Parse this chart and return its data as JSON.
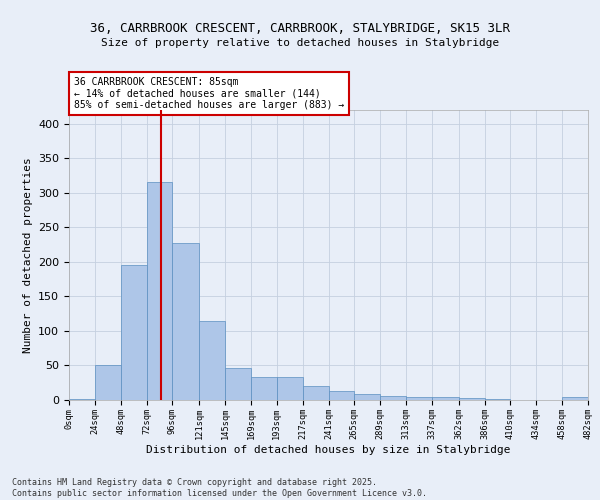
{
  "title_line1": "36, CARRBROOK CRESCENT, CARRBROOK, STALYBRIDGE, SK15 3LR",
  "title_line2": "Size of property relative to detached houses in Stalybridge",
  "xlabel": "Distribution of detached houses by size in Stalybridge",
  "ylabel": "Number of detached properties",
  "annotation_title": "36 CARRBROOK CRESCENT: 85sqm",
  "annotation_line2": "← 14% of detached houses are smaller (144)",
  "annotation_line3": "85% of semi-detached houses are larger (883) →",
  "property_size_sqm": 85,
  "bin_edges": [
    0,
    24,
    48,
    72,
    96,
    121,
    145,
    169,
    193,
    217,
    241,
    265,
    289,
    313,
    337,
    362,
    386,
    410,
    434,
    458,
    482
  ],
  "bar_heights": [
    1,
    50,
    195,
    315,
    228,
    115,
    46,
    34,
    34,
    21,
    13,
    9,
    6,
    4,
    4,
    3,
    1,
    0,
    0,
    4
  ],
  "bar_color": "#aec6e8",
  "bar_edge_color": "#5a8fc0",
  "vline_color": "#cc0000",
  "vline_x": 85,
  "ylim": [
    0,
    420
  ],
  "yticks": [
    0,
    50,
    100,
    150,
    200,
    250,
    300,
    350,
    400
  ],
  "background_color": "#e8eef8",
  "grid_color": "#c5d0e0",
  "annotation_box_color": "#ffffff",
  "annotation_box_edge": "#cc0000",
  "footer_text": "Contains HM Land Registry data © Crown copyright and database right 2025.\nContains public sector information licensed under the Open Government Licence v3.0.",
  "tick_labels": [
    "0sqm",
    "24sqm",
    "48sqm",
    "72sqm",
    "96sqm",
    "121sqm",
    "145sqm",
    "169sqm",
    "193sqm",
    "217sqm",
    "241sqm",
    "265sqm",
    "289sqm",
    "313sqm",
    "337sqm",
    "362sqm",
    "386sqm",
    "410sqm",
    "434sqm",
    "458sqm",
    "482sqm"
  ]
}
